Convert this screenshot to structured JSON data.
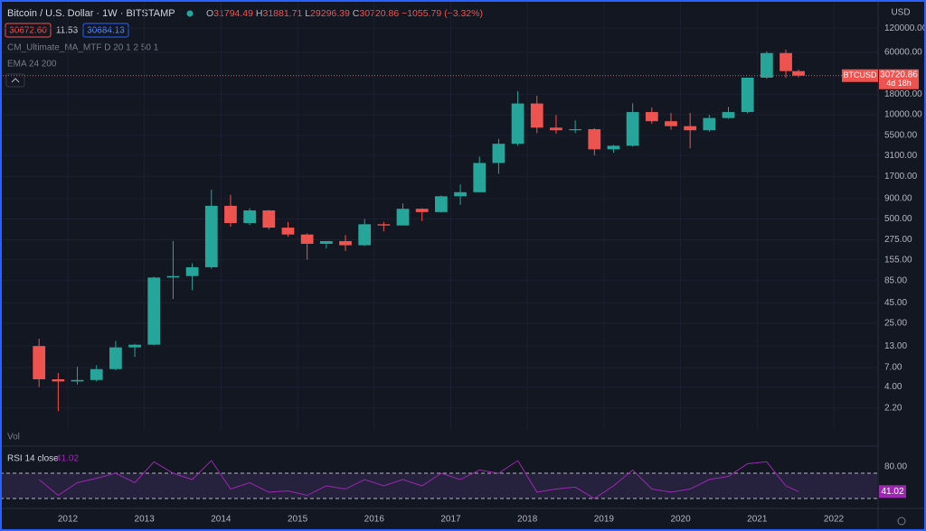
{
  "header": {
    "symbol": "Bitcoin / U.S. Dollar",
    "interval": "1W",
    "exchange": "BITSTAMP",
    "ohlc": [
      {
        "key": "O",
        "value": "31794.49"
      },
      {
        "key": "H",
        "value": "31881.71"
      },
      {
        "key": "L",
        "value": "29296.39"
      },
      {
        "key": "C",
        "value": "30720.86"
      }
    ],
    "change": "−1055.79 (−3.32%)",
    "bid": "30672.60",
    "spread": "11.53",
    "ask": "30684.13",
    "indicators": [
      "CM_Ultimate_MA_MTF D 20 1 2 50 1",
      "EMA 24 200"
    ],
    "volume_label": "Vol",
    "currency": "USD"
  },
  "chart_data": [
    {
      "type": "candlestick",
      "symbol": "BTCUSD",
      "countdown": "4d 18h",
      "last_price": 30720.86,
      "up_color": "#26a69a",
      "down_color": "#ef5350",
      "log_scale": true,
      "grid": true,
      "x": [
        2011.625,
        2011.875,
        2012.125,
        2012.375,
        2012.625,
        2012.875,
        2013.125,
        2013.375,
        2013.625,
        2013.875,
        2014.125,
        2014.375,
        2014.625,
        2014.875,
        2015.125,
        2015.375,
        2015.625,
        2015.875,
        2016.125,
        2016.375,
        2016.625,
        2016.875,
        2017.125,
        2017.375,
        2017.625,
        2017.875,
        2018.125,
        2018.375,
        2018.625,
        2018.875,
        2019.125,
        2019.375,
        2019.625,
        2019.875,
        2020.125,
        2020.375,
        2020.625,
        2020.875,
        2021.125,
        2021.375,
        2021.54
      ],
      "open": [
        13,
        5.0,
        4.7,
        4.9,
        6.7,
        12.5,
        13.5,
        93,
        97,
        125,
        730,
        445,
        640,
        390,
        320,
        245,
        265,
        235,
        430,
        415,
        670,
        610,
        960,
        1080,
        2500,
        4340,
        13800,
        6900,
        6400,
        6600,
        3700,
        4100,
        10800,
        8300,
        7200,
        6400,
        9100,
        10800,
        29000,
        58800,
        35000
      ],
      "high": [
        16,
        6,
        7.2,
        7.5,
        15,
        13.8,
        95,
        266,
        140,
        1160,
        1000,
        680,
        650,
        460,
        330,
        265,
        315,
        500,
        460,
        780,
        680,
        980,
        1350,
        3000,
        5000,
        19700,
        17200,
        9900,
        8500,
        6800,
        4200,
        13900,
        12300,
        10500,
        10500,
        10000,
        12500,
        29000,
        61800,
        64900,
        36700
      ],
      "low": [
        4.0,
        2.0,
        4.3,
        4.7,
        6.5,
        9.5,
        13.3,
        50,
        65,
        120,
        400,
        420,
        370,
        300,
        155,
        215,
        200,
        230,
        350,
        415,
        470,
        605,
        750,
        1080,
        1830,
        4100,
        5900,
        5800,
        5900,
        3100,
        3350,
        4000,
        7700,
        6500,
        3800,
        6150,
        8900,
        10400,
        28100,
        28800,
        29296.39
      ],
      "close": [
        5.0,
        4.7,
        4.9,
        6.7,
        12.5,
        13.5,
        93,
        97,
        125,
        730,
        445,
        640,
        390,
        320,
        245,
        265,
        235,
        430,
        415,
        670,
        610,
        960,
        1080,
        2500,
        4340,
        13800,
        6900,
        6400,
        6600,
        3700,
        4100,
        10800,
        8300,
        7200,
        6400,
        9100,
        10800,
        29000,
        58800,
        35000,
        30720.86
      ],
      "xlim": [
        2011.115,
        2022.567
      ],
      "xticks": [
        2012,
        2013,
        2014,
        2015,
        2016,
        2017,
        2018,
        2019,
        2020,
        2021,
        2022
      ],
      "ylim": [
        1.2,
        270000
      ],
      "yticks": [
        {
          "value": 120000,
          "label": "120000.00"
        },
        {
          "value": 60000,
          "label": "60000.00"
        },
        {
          "value": 18000,
          "label": "18000.00"
        },
        {
          "value": 10000,
          "label": "10000.00"
        },
        {
          "value": 5500,
          "label": "5500.00"
        },
        {
          "value": 3100,
          "label": "3100.00"
        },
        {
          "value": 1700,
          "label": "1700.00"
        },
        {
          "value": 900,
          "label": "900.00"
        },
        {
          "value": 500,
          "label": "500.00"
        },
        {
          "value": 275,
          "label": "275.00"
        },
        {
          "value": 155,
          "label": "155.00"
        },
        {
          "value": 85,
          "label": "85.00"
        },
        {
          "value": 45,
          "label": "45.00"
        },
        {
          "value": 25,
          "label": "25.00"
        },
        {
          "value": 13,
          "label": "13.00"
        },
        {
          "value": 7,
          "label": "7.00"
        },
        {
          "value": 4,
          "label": "4.00"
        },
        {
          "value": 2.2,
          "label": "2.20"
        }
      ]
    },
    {
      "type": "line",
      "title": "RSI 14 close",
      "color": "#9c27b0",
      "last_value": 41.02,
      "bands": [
        30,
        70
      ],
      "x": [
        2011.625,
        2011.875,
        2012.125,
        2012.375,
        2012.625,
        2012.875,
        2013.125,
        2013.375,
        2013.625,
        2013.875,
        2014.125,
        2014.375,
        2014.625,
        2014.875,
        2015.125,
        2015.375,
        2015.625,
        2015.875,
        2016.125,
        2016.375,
        2016.625,
        2016.875,
        2017.125,
        2017.375,
        2017.625,
        2017.875,
        2018.125,
        2018.375,
        2018.625,
        2018.875,
        2019.125,
        2019.375,
        2019.625,
        2019.875,
        2020.125,
        2020.375,
        2020.625,
        2020.875,
        2021.125,
        2021.375,
        2021.54
      ],
      "values": [
        60,
        35,
        55,
        62,
        70,
        55,
        88,
        70,
        60,
        90,
        45,
        55,
        40,
        42,
        35,
        50,
        45,
        60,
        50,
        60,
        50,
        70,
        60,
        75,
        70,
        90,
        40,
        45,
        48,
        30,
        50,
        75,
        45,
        40,
        45,
        60,
        65,
        85,
        88,
        50,
        41.02
      ],
      "xlim": [
        2011.115,
        2022.567
      ],
      "ylim": [
        18.6,
        108.6
      ],
      "yticks": [
        {
          "value": 80,
          "label": "80.00"
        }
      ]
    }
  ]
}
